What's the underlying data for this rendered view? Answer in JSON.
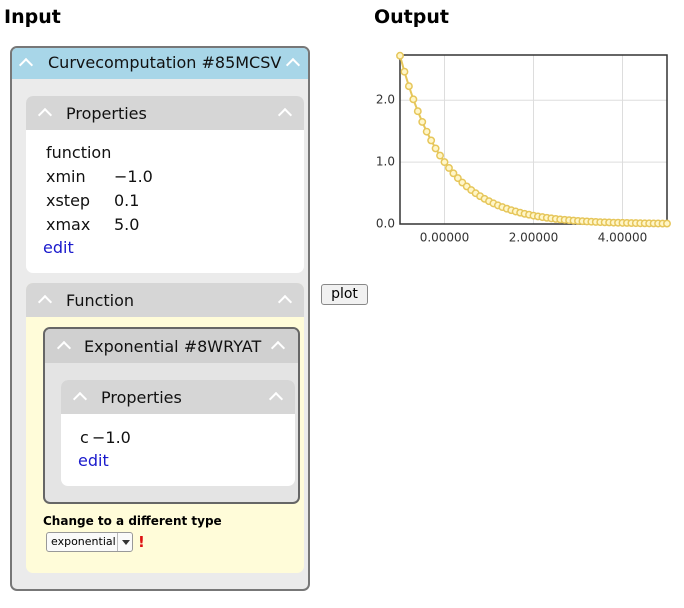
{
  "input_heading": "Input",
  "output_heading": "Output",
  "curve": {
    "header": "Curvecomputation #85MCSV",
    "properties": {
      "header": "Properties",
      "function_label": "function",
      "items": [
        {
          "key": "xmin",
          "value": "−1.0"
        },
        {
          "key": "xstep",
          "value": "0.1"
        },
        {
          "key": "xmax",
          "value": "5.0"
        }
      ],
      "edit": "edit"
    },
    "function_panel": {
      "header": "Function",
      "exponential": {
        "header": "Exponential #8WRYAT",
        "properties": {
          "header": "Properties",
          "items": [
            {
              "key": "c",
              "value": "−1.0"
            }
          ],
          "edit": "edit"
        }
      },
      "change_label": "Change to a different type",
      "select_value": "exponential",
      "warning": "!"
    }
  },
  "plot_button": "plot",
  "chart_data": {
    "type": "line",
    "color": "#e6c65a",
    "x": [
      -1.0,
      -0.9,
      -0.8,
      -0.7,
      -0.6,
      -0.5,
      -0.4,
      -0.3,
      -0.2,
      -0.1,
      0.0,
      0.1,
      0.2,
      0.3,
      0.4,
      0.5,
      0.6,
      0.7,
      0.8,
      0.9,
      1.0,
      1.1,
      1.2,
      1.3,
      1.4,
      1.5,
      1.6,
      1.7,
      1.8,
      1.9,
      2.0,
      2.1,
      2.2,
      2.3,
      2.4,
      2.5,
      2.6,
      2.7,
      2.8,
      2.9,
      3.0,
      3.1,
      3.2,
      3.3,
      3.4,
      3.5,
      3.6,
      3.7,
      3.8,
      3.9,
      4.0,
      4.1,
      4.2,
      4.3,
      4.4,
      4.5,
      4.6,
      4.7,
      4.8,
      4.9,
      5.0
    ],
    "values": [
      2.718,
      2.46,
      2.226,
      2.014,
      1.822,
      1.649,
      1.492,
      1.35,
      1.221,
      1.105,
      1.0,
      0.905,
      0.819,
      0.741,
      0.67,
      0.607,
      0.549,
      0.497,
      0.449,
      0.407,
      0.368,
      0.333,
      0.301,
      0.273,
      0.247,
      0.223,
      0.202,
      0.183,
      0.165,
      0.15,
      0.135,
      0.122,
      0.111,
      0.1,
      0.091,
      0.082,
      0.074,
      0.067,
      0.061,
      0.055,
      0.05,
      0.045,
      0.041,
      0.037,
      0.033,
      0.03,
      0.027,
      0.025,
      0.022,
      0.02,
      0.018,
      0.017,
      0.015,
      0.014,
      0.012,
      0.011,
      0.01,
      0.009,
      0.008,
      0.007,
      0.007
    ],
    "xlim": [
      -1,
      5
    ],
    "ylim": [
      0,
      2.73
    ],
    "xticks": [
      {
        "value": 0,
        "label": "0.00000"
      },
      {
        "value": 2,
        "label": "2.00000"
      },
      {
        "value": 4,
        "label": "4.00000"
      }
    ],
    "yticks": [
      {
        "value": 0,
        "label": "0.0"
      },
      {
        "value": 1,
        "label": "1.0"
      },
      {
        "value": 2,
        "label": "2.0"
      }
    ],
    "grid": true
  }
}
